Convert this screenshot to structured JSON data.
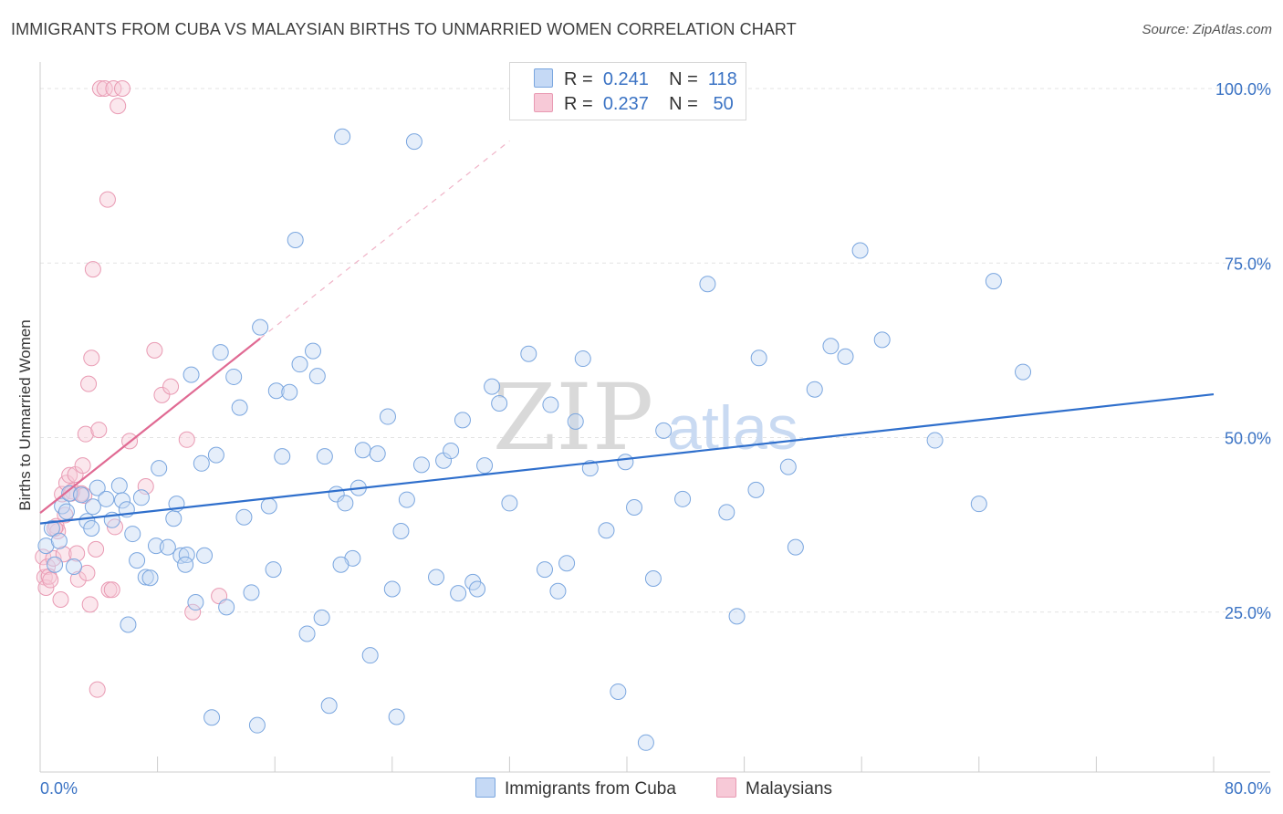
{
  "title": "IMMIGRANTS FROM CUBA VS MALAYSIAN BIRTHS TO UNMARRIED WOMEN CORRELATION CHART",
  "source": "Source: ZipAtlas.com",
  "watermark": {
    "zip": "ZIP",
    "atlas": "atlas"
  },
  "legend": {
    "r_label": "R =",
    "n_label": "N =",
    "series1": {
      "r": "0.241",
      "n": "118"
    },
    "series2": {
      "r": "0.237",
      "n": "50"
    }
  },
  "chart_data": {
    "type": "scatter",
    "title": "IMMIGRANTS FROM CUBA VS MALAYSIAN BIRTHS TO UNMARRIED WOMEN CORRELATION CHART",
    "xlabel": "",
    "ylabel": "Births to Unmarried Women",
    "xlim": [
      0,
      80
    ],
    "ylim": [
      0,
      100
    ],
    "x_tick_labels": [
      {
        "value": 0,
        "label": "0.0%"
      },
      {
        "value": 80,
        "label": "80.0%"
      }
    ],
    "y_tick_labels": [
      {
        "value": 25,
        "label": "25.0%"
      },
      {
        "value": 50,
        "label": "50.0%"
      },
      {
        "value": 75,
        "label": "75.0%"
      },
      {
        "value": 100,
        "label": "100.0%"
      }
    ],
    "colors": {
      "series1_fill": "#c5d9f5",
      "series1_stroke": "#7aa6df",
      "series1_line": "#2f6fcc",
      "series2_fill": "#f7c9d7",
      "series2_stroke": "#e99ab3",
      "series2_line": "#e06a93"
    },
    "series": [
      {
        "name": "Immigrants from Cuba",
        "trend": {
          "x0": 0,
          "y0": 37.7,
          "x1": 80,
          "y1": 56.2
        },
        "points": [
          [
            0.4,
            34.5
          ],
          [
            0.8,
            37.0
          ],
          [
            1.0,
            31.8
          ],
          [
            1.3,
            35.2
          ],
          [
            1.5,
            40.2
          ],
          [
            1.8,
            39.4
          ],
          [
            2.0,
            42.0
          ],
          [
            2.3,
            31.5
          ],
          [
            2.8,
            41.8
          ],
          [
            3.2,
            38.0
          ],
          [
            3.6,
            40.1
          ],
          [
            3.9,
            42.8
          ],
          [
            4.5,
            41.2
          ],
          [
            4.9,
            38.2
          ],
          [
            5.4,
            43.1
          ],
          [
            5.6,
            41.0
          ],
          [
            5.9,
            39.7
          ],
          [
            6.0,
            23.2
          ],
          [
            6.3,
            36.2
          ],
          [
            6.6,
            32.4
          ],
          [
            6.9,
            41.4
          ],
          [
            7.2,
            30.0
          ],
          [
            7.5,
            29.9
          ],
          [
            7.9,
            34.5
          ],
          [
            8.1,
            45.6
          ],
          [
            8.7,
            34.3
          ],
          [
            9.1,
            38.4
          ],
          [
            9.3,
            40.5
          ],
          [
            9.6,
            33.1
          ],
          [
            10.0,
            33.2
          ],
          [
            10.3,
            59.0
          ],
          [
            10.6,
            26.4
          ],
          [
            11.0,
            46.3
          ],
          [
            11.2,
            33.1
          ],
          [
            11.7,
            9.9
          ],
          [
            12.0,
            47.5
          ],
          [
            12.3,
            62.2
          ],
          [
            12.7,
            25.7
          ],
          [
            13.2,
            58.7
          ],
          [
            13.6,
            54.3
          ],
          [
            13.9,
            38.6
          ],
          [
            14.4,
            27.8
          ],
          [
            14.8,
            8.8
          ],
          [
            15.0,
            65.8
          ],
          [
            15.6,
            40.2
          ],
          [
            15.9,
            31.1
          ],
          [
            16.1,
            56.7
          ],
          [
            16.5,
            47.3
          ],
          [
            17.0,
            56.5
          ],
          [
            17.4,
            78.3
          ],
          [
            17.7,
            60.5
          ],
          [
            18.2,
            21.9
          ],
          [
            18.6,
            62.4
          ],
          [
            18.9,
            58.8
          ],
          [
            19.2,
            24.2
          ],
          [
            19.4,
            47.3
          ],
          [
            19.7,
            11.6
          ],
          [
            20.2,
            41.9
          ],
          [
            20.6,
            93.1
          ],
          [
            20.8,
            40.6
          ],
          [
            21.3,
            32.7
          ],
          [
            21.7,
            42.8
          ],
          [
            22.0,
            48.2
          ],
          [
            22.5,
            18.8
          ],
          [
            23.0,
            47.7
          ],
          [
            23.7,
            53.0
          ],
          [
            24.0,
            28.3
          ],
          [
            24.3,
            10.0
          ],
          [
            24.6,
            36.6
          ],
          [
            25.0,
            41.1
          ],
          [
            25.5,
            92.4
          ],
          [
            26.0,
            46.1
          ],
          [
            27.0,
            30.0
          ],
          [
            27.5,
            46.7
          ],
          [
            28.0,
            48.1
          ],
          [
            28.5,
            27.7
          ],
          [
            28.8,
            52.5
          ],
          [
            29.5,
            29.3
          ],
          [
            29.8,
            28.3
          ],
          [
            30.3,
            46.0
          ],
          [
            30.8,
            57.3
          ],
          [
            31.3,
            54.9
          ],
          [
            32.0,
            40.6
          ],
          [
            33.3,
            62.0
          ],
          [
            34.4,
            31.1
          ],
          [
            34.8,
            54.7
          ],
          [
            35.3,
            28.0
          ],
          [
            35.9,
            32.0
          ],
          [
            36.5,
            52.3
          ],
          [
            37.0,
            61.3
          ],
          [
            37.5,
            45.6
          ],
          [
            38.6,
            36.7
          ],
          [
            39.4,
            13.6
          ],
          [
            39.9,
            46.5
          ],
          [
            40.5,
            40.0
          ],
          [
            41.3,
            6.3
          ],
          [
            41.8,
            29.8
          ],
          [
            42.5,
            51.0
          ],
          [
            43.8,
            41.2
          ],
          [
            45.5,
            72.0
          ],
          [
            46.8,
            39.3
          ],
          [
            47.5,
            24.4
          ],
          [
            48.8,
            42.5
          ],
          [
            49.0,
            61.4
          ],
          [
            51.0,
            45.8
          ],
          [
            51.5,
            34.3
          ],
          [
            52.8,
            56.9
          ],
          [
            53.9,
            63.1
          ],
          [
            54.9,
            61.6
          ],
          [
            55.9,
            76.8
          ],
          [
            57.4,
            64.0
          ],
          [
            61.0,
            49.6
          ],
          [
            64.0,
            40.5
          ],
          [
            65.0,
            72.4
          ],
          [
            67.0,
            59.4
          ],
          [
            3.5,
            37.0
          ],
          [
            9.9,
            31.8
          ],
          [
            20.5,
            31.8
          ]
        ]
      },
      {
        "name": "Malaysians",
        "trend": {
          "x0": 0,
          "y0": 39.2,
          "x1": 15,
          "y1": 64.2
        },
        "trend_extension": {
          "x0": 15,
          "y0": 64.2,
          "x1": 32,
          "y1": 92.5
        },
        "points": [
          [
            0.2,
            32.9
          ],
          [
            0.3,
            30.0
          ],
          [
            0.4,
            28.5
          ],
          [
            0.5,
            31.5
          ],
          [
            0.6,
            30.1
          ],
          [
            0.7,
            29.6
          ],
          [
            0.9,
            32.7
          ],
          [
            1.1,
            37.3
          ],
          [
            1.2,
            36.6
          ],
          [
            1.4,
            26.8
          ],
          [
            1.6,
            33.3
          ],
          [
            1.5,
            41.9
          ],
          [
            1.7,
            38.9
          ],
          [
            1.8,
            43.5
          ],
          [
            2.0,
            44.6
          ],
          [
            2.2,
            42.3
          ],
          [
            2.4,
            44.7
          ],
          [
            2.5,
            33.4
          ],
          [
            2.6,
            29.7
          ],
          [
            2.8,
            42.0
          ],
          [
            2.9,
            46.0
          ],
          [
            3.0,
            41.7
          ],
          [
            3.1,
            50.5
          ],
          [
            3.2,
            30.6
          ],
          [
            3.3,
            57.7
          ],
          [
            3.4,
            26.1
          ],
          [
            3.5,
            61.4
          ],
          [
            3.6,
            74.1
          ],
          [
            3.8,
            34.0
          ],
          [
            3.9,
            13.9
          ],
          [
            4.0,
            51.1
          ],
          [
            4.1,
            100.0
          ],
          [
            4.4,
            100.0
          ],
          [
            4.6,
            84.1
          ],
          [
            4.7,
            28.2
          ],
          [
            4.9,
            28.2
          ],
          [
            5.0,
            100.0
          ],
          [
            5.1,
            37.2
          ],
          [
            5.3,
            97.5
          ],
          [
            5.6,
            100.0
          ],
          [
            6.1,
            49.5
          ],
          [
            7.2,
            43.0
          ],
          [
            7.8,
            62.5
          ],
          [
            8.3,
            56.1
          ],
          [
            8.9,
            57.3
          ],
          [
            10.0,
            49.7
          ],
          [
            10.4,
            25.0
          ],
          [
            12.2,
            27.3
          ],
          [
            2.1,
            42.0
          ],
          [
            1.0,
            37.0
          ]
        ]
      }
    ]
  },
  "legend_bottom": {
    "series1_label": "Immigrants from Cuba",
    "series2_label": "Malaysians"
  }
}
